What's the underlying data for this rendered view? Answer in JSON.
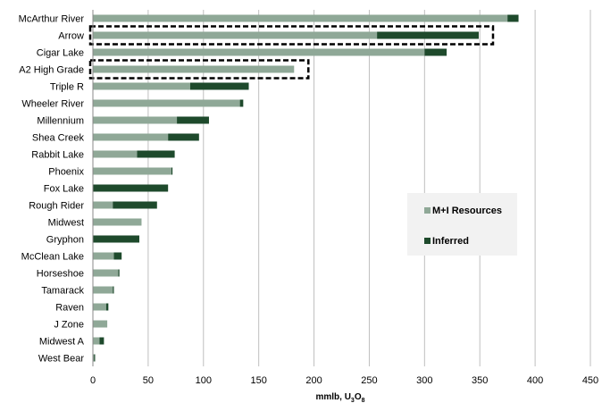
{
  "chart_data": {
    "type": "bar",
    "orientation": "horizontal",
    "stacked": true,
    "categories": [
      "McArthur River",
      "Arrow",
      "Cigar Lake",
      "A2 High Grade",
      "Triple R",
      "Wheeler River",
      "Millennium",
      "Shea Creek",
      "Rabbit Lake",
      "Phoenix",
      "Fox Lake",
      "Rough Rider",
      "Midwest",
      "Gryphon",
      "McClean Lake",
      "Horseshoe",
      "Tamarack",
      "Raven",
      "J Zone",
      "Midwest A",
      "West Bear"
    ],
    "series": [
      {
        "name": "M+I Resources",
        "color": "#8fa897",
        "values": [
          375,
          257,
          300,
          182,
          88,
          133,
          76,
          68,
          40,
          71,
          0,
          18,
          44,
          0,
          19,
          23,
          18,
          12,
          13,
          6,
          1
        ]
      },
      {
        "name": "Inferred",
        "color": "#1e4a2c",
        "values": [
          10,
          92,
          20,
          0,
          53,
          3,
          29,
          28,
          34,
          1,
          68,
          40,
          0,
          42,
          7,
          1,
          1,
          2,
          0,
          4,
          1
        ]
      }
    ],
    "xlabel": "mmlb, U",
    "xlabel_sub": "3",
    "xlabel_mid": "O",
    "xlabel_sub2": "8",
    "xlim": [
      0,
      450
    ],
    "xticks": [
      "0",
      "50",
      "100",
      "150",
      "200",
      "250",
      "300",
      "350",
      "400",
      "450"
    ],
    "grid": "vertical",
    "legend_placement": "right",
    "highlighted": [
      "Arrow",
      "A2 High Grade"
    ]
  }
}
